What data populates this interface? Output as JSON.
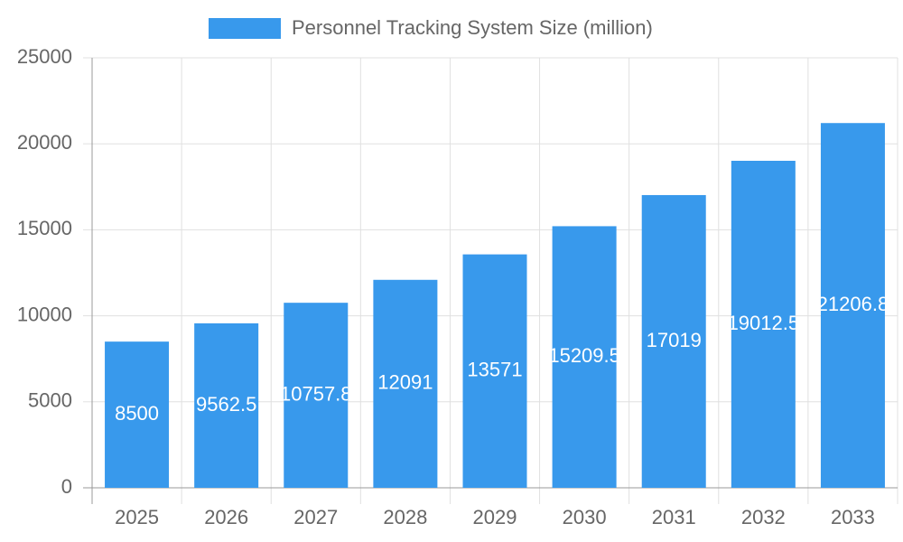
{
  "chart_data": {
    "type": "bar",
    "categories": [
      "2025",
      "2026",
      "2027",
      "2028",
      "2029",
      "2030",
      "2031",
      "2032",
      "2033"
    ],
    "series": [
      {
        "name": "Personnel Tracking System Size (million)",
        "color": "#3899ec",
        "values": [
          8500,
          9562.5,
          10757.8,
          12091,
          13571,
          15209.5,
          17019,
          19012.5,
          21206.8
        ]
      }
    ],
    "ylim": [
      0,
      25000
    ],
    "yticks": [
      0,
      5000,
      10000,
      15000,
      20000,
      25000
    ],
    "grid": true,
    "legend": "top"
  }
}
